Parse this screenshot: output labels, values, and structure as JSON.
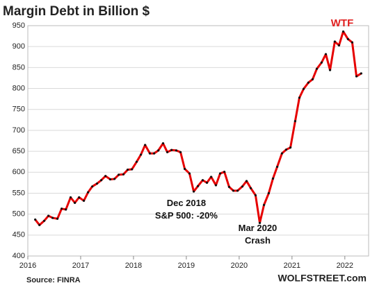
{
  "chart_data": {
    "type": "line",
    "title": "Margin Debt in Billion $",
    "source": "Source: FINRA",
    "brand": "WOLFSTREET.com",
    "annotations": [
      {
        "lines": [
          "WTF"
        ],
        "x": 2021.95,
        "y": 955,
        "color": "#e02020"
      },
      {
        "lines": [
          "Dec 2018",
          "S&P 500:  -20%"
        ],
        "x": 2019.0,
        "y": 525
      },
      {
        "lines": [
          "Mar 2020",
          "Crash"
        ],
        "x": 2020.35,
        "y": 465
      }
    ],
    "x": [
      2016.14,
      2016.22,
      2016.31,
      2016.39,
      2016.47,
      2016.56,
      2016.64,
      2016.72,
      2016.81,
      2016.89,
      2016.97,
      2017.06,
      2017.14,
      2017.22,
      2017.31,
      2017.39,
      2017.47,
      2017.56,
      2017.64,
      2017.72,
      2017.81,
      2017.89,
      2017.97,
      2018.06,
      2018.14,
      2018.22,
      2018.31,
      2018.39,
      2018.47,
      2018.56,
      2018.64,
      2018.72,
      2018.81,
      2018.89,
      2018.97,
      2019.06,
      2019.14,
      2019.22,
      2019.31,
      2019.39,
      2019.47,
      2019.56,
      2019.64,
      2019.72,
      2019.81,
      2019.89,
      2019.97,
      2020.06,
      2020.14,
      2020.22,
      2020.31,
      2020.39,
      2020.47,
      2020.56,
      2020.64,
      2020.72,
      2020.81,
      2020.89,
      2020.97,
      2021.06,
      2021.14,
      2021.22,
      2021.31,
      2021.39,
      2021.47,
      2021.56,
      2021.64,
      2021.72,
      2021.81,
      2021.89,
      2021.97,
      2022.06,
      2022.14,
      2022.22,
      2022.31
    ],
    "series": [
      {
        "name": "Margin Debt",
        "color": "#e60000",
        "values": [
          487,
          474,
          484,
          496,
          491,
          489,
          513,
          511,
          540,
          527,
          540,
          532,
          552,
          566,
          573,
          581,
          591,
          583,
          584,
          594,
          595,
          606,
          607,
          625,
          642,
          665,
          645,
          645,
          652,
          669,
          648,
          653,
          652,
          648,
          608,
          597,
          554,
          567,
          581,
          575,
          589,
          569,
          597,
          601,
          565,
          556,
          556,
          566,
          579,
          562,
          545,
          479,
          522,
          550,
          585,
          613,
          645,
          654,
          659,
          722,
          778,
          799,
          814,
          822,
          847,
          862,
          882,
          844,
          912,
          903,
          936,
          918,
          910,
          829,
          836
        ]
      }
    ],
    "xlim": [
      2016,
      2022.45
    ],
    "xticks": [
      2016,
      2017,
      2018,
      2019,
      2020,
      2021,
      2022
    ],
    "ylim": [
      400,
      950
    ],
    "yticks": [
      400,
      450,
      500,
      550,
      600,
      650,
      700,
      750,
      800,
      850,
      900,
      950
    ],
    "grid": true
  }
}
